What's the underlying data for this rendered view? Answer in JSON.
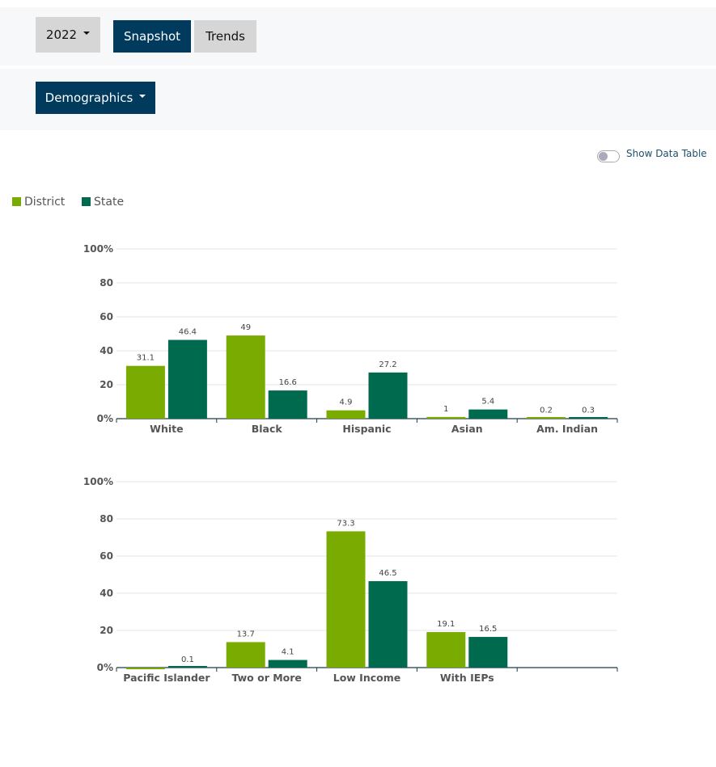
{
  "toolbar": {
    "year": "2022",
    "views": [
      "Snapshot",
      "Trends"
    ],
    "filter": "Demographics",
    "toggle_label": "Show Data Table"
  },
  "chart_data": [
    {
      "type": "bar",
      "categories": [
        "White",
        "Black",
        "Hispanic",
        "Asian",
        "Am. Indian"
      ],
      "series": [
        {
          "name": "District",
          "color": "#79ab00",
          "values": [
            31.1,
            49,
            4.9,
            1,
            0.2
          ]
        },
        {
          "name": "State",
          "color": "#006a4e",
          "values": [
            46.4,
            16.6,
            27.2,
            5.4,
            0.3
          ]
        }
      ],
      "ylim": [
        0,
        100
      ],
      "yticks": [
        {
          "value": 0,
          "label": "0%"
        },
        20,
        40,
        60,
        80,
        {
          "value": 100,
          "label": "100%"
        }
      ],
      "grid": true
    },
    {
      "type": "bar",
      "categories": [
        "Pacific Islander",
        "Two or More",
        "Low Income",
        "With IEPs",
        null
      ],
      "series": [
        {
          "color": "#79ab00",
          "values": [
            0,
            13.7,
            73.3,
            19.1,
            null
          ]
        },
        {
          "color": "#006a4e",
          "values": [
            0.1,
            4.1,
            46.5,
            16.5,
            null
          ]
        }
      ],
      "ylim": [
        0,
        100
      ],
      "yticks": [
        {
          "value": 0,
          "label": "0%"
        },
        20,
        40,
        60,
        80,
        {
          "value": 100,
          "label": "100%"
        }
      ],
      "grid": true
    }
  ]
}
